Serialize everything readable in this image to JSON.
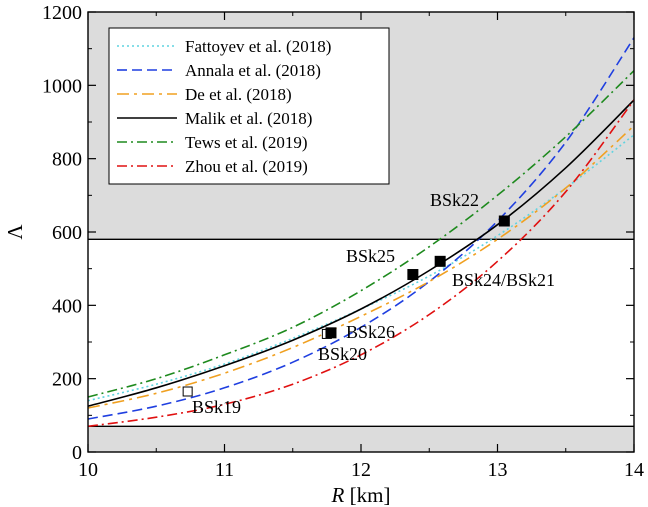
{
  "chart_data": {
    "type": "line",
    "xlabel": "R [km]",
    "ylabel": "Λ",
    "xlim": [
      10,
      14
    ],
    "ylim": [
      0,
      1200
    ],
    "xticks": [
      10,
      11,
      12,
      13,
      14
    ],
    "yticks": [
      0,
      200,
      400,
      600,
      800,
      1000,
      1200
    ],
    "shaded_bands": [
      {
        "y_from": 0,
        "y_to": 70,
        "color": "#dcdcdc"
      },
      {
        "y_from": 580,
        "y_to": 1200,
        "color": "#dcdcdc"
      }
    ],
    "horizontal_lines": [
      70,
      580
    ],
    "series": [
      {
        "name": "Fattoyev et al. (2018)",
        "color": "#5fd3e0",
        "dash": "2,3",
        "x": [
          10,
          10.5,
          11,
          11.5,
          12,
          12.5,
          13,
          13.5,
          14
        ],
        "y": [
          140,
          185,
          240,
          310,
          390,
          480,
          590,
          720,
          865
        ]
      },
      {
        "name": "Annala et al. (2018)",
        "color": "#1f3fe0",
        "dash": "10,5",
        "x": [
          10,
          10.5,
          11,
          11.5,
          12,
          12.5,
          13,
          13.5,
          14
        ],
        "y": [
          90,
          125,
          175,
          245,
          340,
          465,
          630,
          845,
          1130
        ]
      },
      {
        "name": "De et al. (2018)",
        "color": "#f0a020",
        "dash": "12,5,3,5",
        "x": [
          10,
          10.5,
          11,
          11.5,
          12,
          12.5,
          13,
          13.5,
          14
        ],
        "y": [
          120,
          160,
          215,
          285,
          370,
          465,
          580,
          720,
          890
        ]
      },
      {
        "name": "Malik et al. (2018)",
        "color": "#000000",
        "dash": "",
        "x": [
          10,
          10.5,
          11,
          11.5,
          12,
          12.5,
          13,
          13.5,
          14
        ],
        "y": [
          125,
          175,
          235,
          305,
          390,
          495,
          620,
          775,
          960
        ]
      },
      {
        "name": "Tews et al. (2019)",
        "color": "#1e8a1e",
        "dash": "10,4,2,4",
        "x": [
          10,
          10.5,
          11,
          11.5,
          12,
          12.5,
          13,
          13.5,
          14
        ],
        "y": [
          150,
          200,
          265,
          340,
          440,
          560,
          700,
          860,
          1040
        ]
      },
      {
        "name": "Zhou et al. (2019)",
        "color": "#e01010",
        "dash": "10,4,2,4",
        "x": [
          10,
          10.5,
          11,
          11.5,
          12,
          12.5,
          13,
          13.5,
          14
        ],
        "y": [
          70,
          95,
          130,
          185,
          265,
          375,
          520,
          710,
          960
        ]
      }
    ],
    "points": [
      {
        "label": "BSk19",
        "x": 10.73,
        "y": 165,
        "filled": false
      },
      {
        "label": "BSk20",
        "x": 11.75,
        "y": 322,
        "filled": false
      },
      {
        "label": "BSk26",
        "x": 11.78,
        "y": 325,
        "filled": true
      },
      {
        "label": "BSk25",
        "x": 12.38,
        "y": 484,
        "filled": true
      },
      {
        "label": "BSk24/BSk21",
        "x": 12.58,
        "y": 520,
        "filled": true
      },
      {
        "label": "BSk22",
        "x": 13.05,
        "y": 630,
        "filled": true
      }
    ]
  }
}
